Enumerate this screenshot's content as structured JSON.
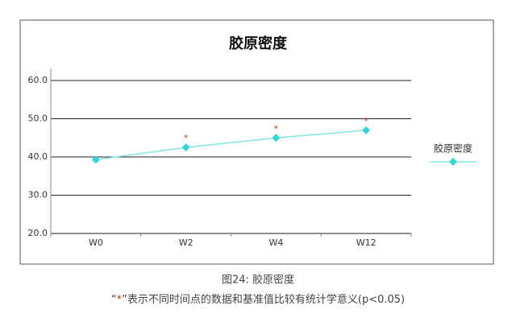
{
  "chart_data": {
    "type": "line",
    "title": "胶原密度",
    "categories": [
      "W0",
      "W2",
      "W4",
      "W12"
    ],
    "series": [
      {
        "name": "胶原密度",
        "color": "#7fe6e6",
        "marker_color": "#33d6d6",
        "values": [
          39.3,
          42.5,
          45.0,
          47.0
        ]
      }
    ],
    "significance": [
      null,
      "*",
      "*",
      "*"
    ],
    "significance_color": "#c0392b",
    "ylim": [
      20,
      60
    ],
    "yticks": [
      {
        "value": 20,
        "label": "20.0"
      },
      {
        "value": 30,
        "label": "30.0"
      },
      {
        "value": 40,
        "label": "40.0"
      },
      {
        "value": 50,
        "label": "50.0"
      },
      {
        "value": 60,
        "label": "60.0"
      }
    ],
    "grid": true,
    "legend": "right"
  },
  "caption": "图24: 胶原密度",
  "note": {
    "open": "“",
    "mark": "*",
    "rest": "”表示不同时间点的数据和基准值比较有统计学意义(p<0.05)"
  }
}
